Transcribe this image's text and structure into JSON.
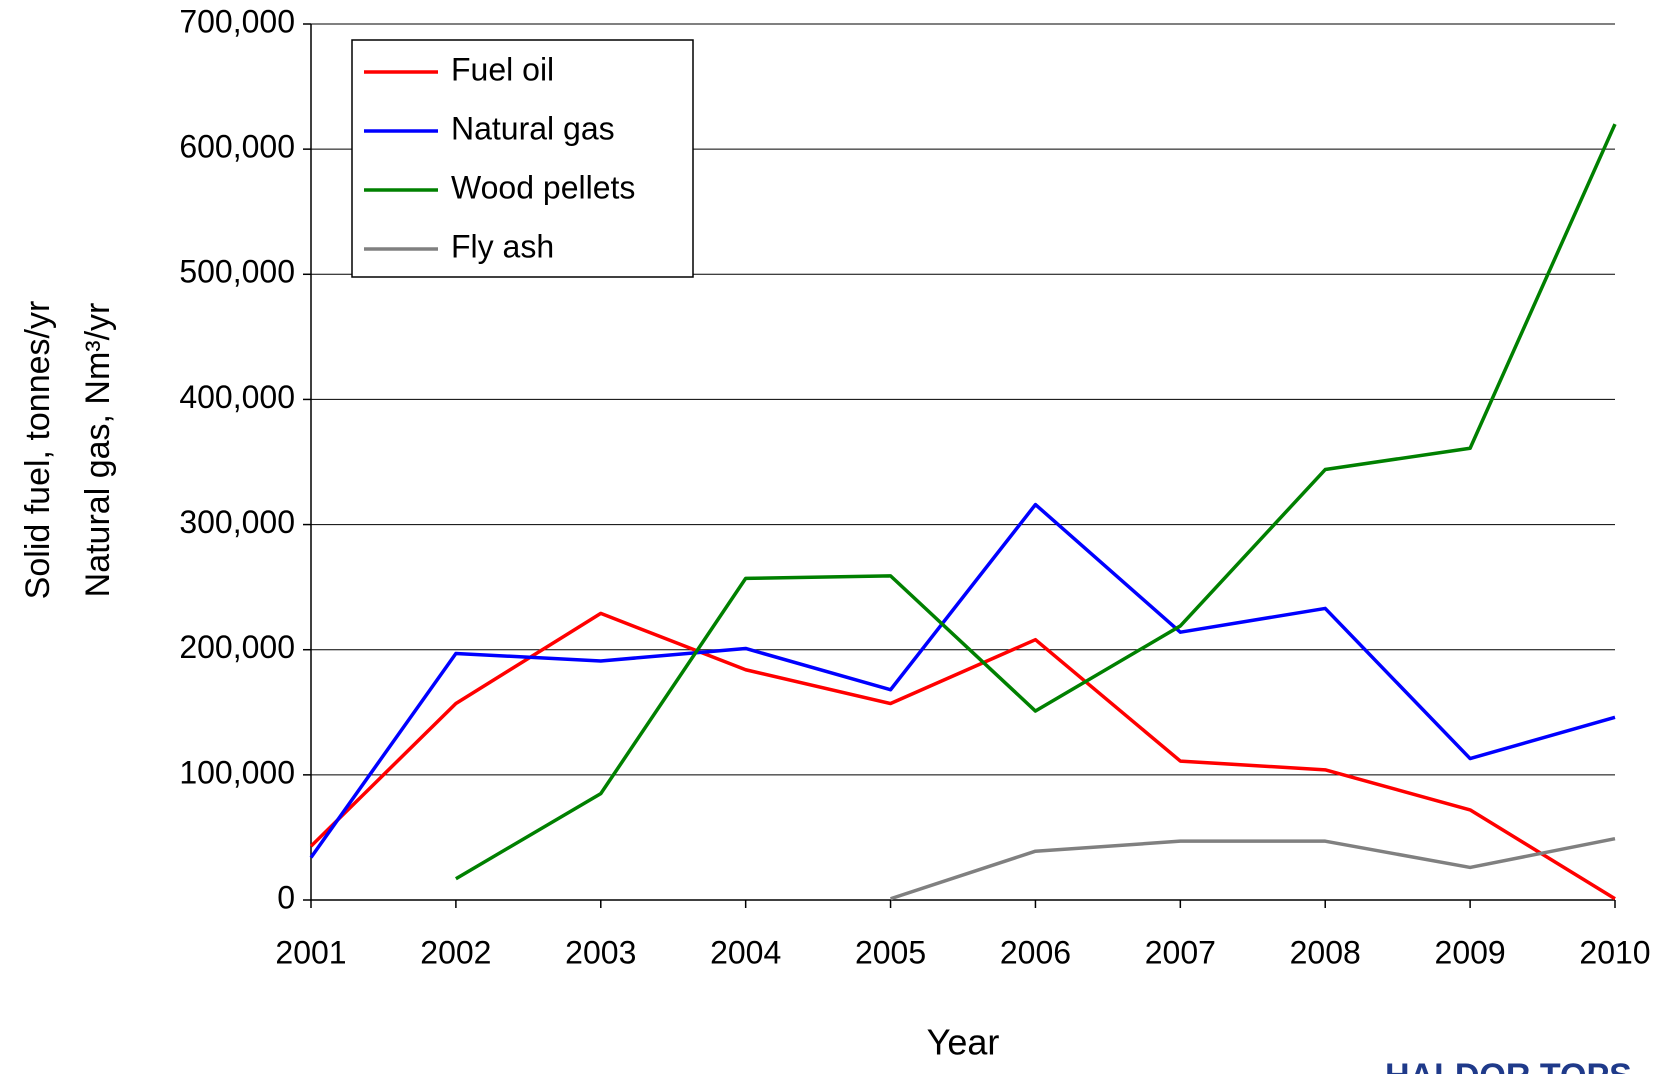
{
  "chart_data": {
    "type": "line",
    "xlabel": "Year",
    "ylabel": [
      "Solid fuel, tonnes/yr",
      "Natural gas, Nm³/yr"
    ],
    "categories": [
      "2001",
      "2002",
      "2003",
      "2004",
      "2005",
      "2006",
      "2007",
      "2008",
      "2009",
      "2010"
    ],
    "series": [
      {
        "name": "Fuel oil",
        "color": "#ff0000",
        "values": [
          43000,
          157000,
          229000,
          184000,
          157000,
          208000,
          111000,
          104000,
          72000,
          1000
        ]
      },
      {
        "name": "Natural gas",
        "color": "#0000ff",
        "values": [
          34000,
          197000,
          191000,
          201000,
          168000,
          316000,
          214000,
          233000,
          113000,
          146000
        ]
      },
      {
        "name": "Wood pellets",
        "color": "#008000",
        "values": [
          null,
          17000,
          85000,
          257000,
          259000,
          151000,
          219000,
          344000,
          361000,
          620000
        ]
      },
      {
        "name": "Fly ash",
        "color": "#808080",
        "values": [
          null,
          null,
          null,
          null,
          1000,
          39000,
          47000,
          47000,
          26000,
          49000
        ]
      }
    ],
    "ylim": [
      0,
      700000
    ],
    "yticks": [
      0,
      {
        "value": 100000,
        "label": "100,000"
      },
      {
        "value": 200000,
        "label": "200,000"
      },
      {
        "value": 300000,
        "label": "300,000"
      },
      {
        "value": 400000,
        "label": "400,000"
      },
      {
        "value": 500000,
        "label": "500,000"
      },
      {
        "value": 600000,
        "label": "600,000"
      },
      {
        "value": 700000,
        "label": "700,000"
      }
    ],
    "grid": true,
    "legend": "upper left",
    "logo": "HALDOR TOPS"
  }
}
